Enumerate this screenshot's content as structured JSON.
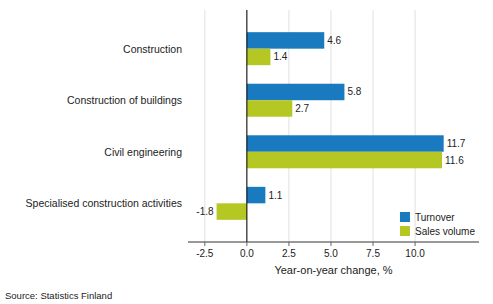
{
  "chart_data": {
    "type": "bar",
    "orientation": "horizontal",
    "categories": [
      "Specialised construction activities",
      "Civil engineering",
      "Construction of buildings",
      "Construction"
    ],
    "series": [
      {
        "name": "Turnover",
        "color": "#1a7abf",
        "values": [
          1.1,
          11.7,
          5.8,
          4.6
        ]
      },
      {
        "name": "Sales volume",
        "color": "#b5c722",
        "values": [
          -1.8,
          11.6,
          2.7,
          1.4
        ]
      }
    ],
    "xlabel": "Year-on-year change, %",
    "annotations": [
      "Source: Statistics Finland"
    ],
    "xlim": [
      -3.5,
      13.8
    ],
    "xticks": [
      -2.5,
      {
        "value": 0,
        "label": "0.0"
      },
      2.5,
      {
        "value": 5,
        "label": "5.0"
      },
      7.5,
      {
        "value": 10,
        "label": "10.0"
      }
    ],
    "grid": true,
    "legend": "lower right",
    "data_labels": true
  }
}
